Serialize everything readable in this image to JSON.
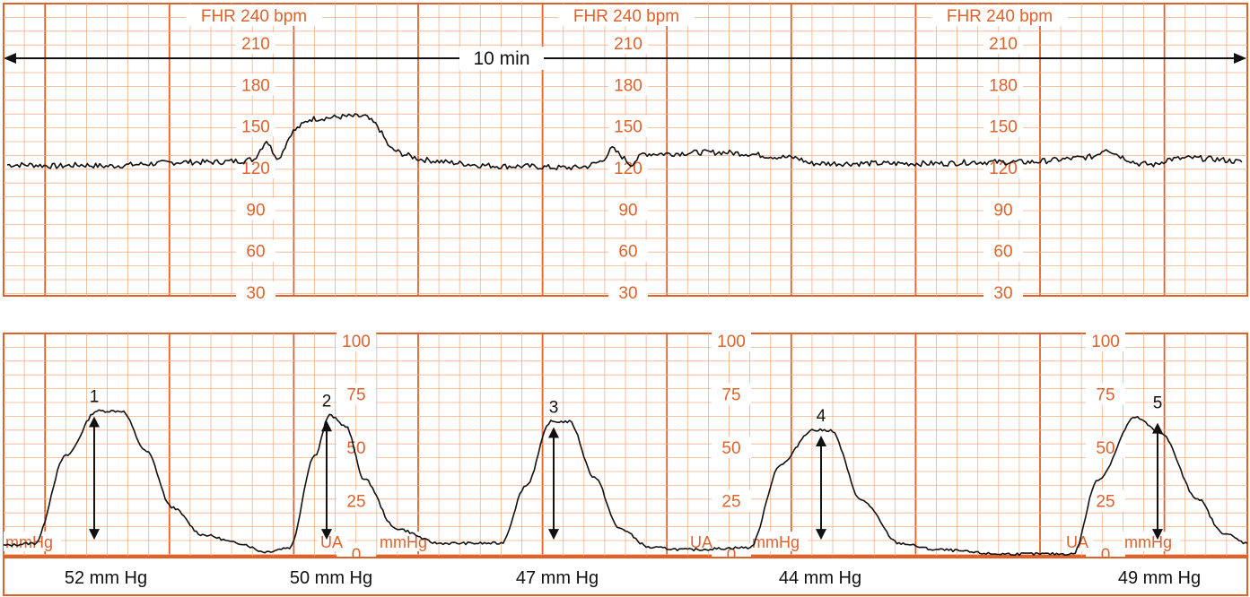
{
  "chart_data": [
    {
      "type": "line",
      "series": [
        {
          "values": [
            [
              0,
              122
            ],
            [
              0.2,
              122
            ],
            [
              0.4,
              121
            ],
            [
              0.6,
              122
            ],
            [
              0.8,
              121
            ],
            [
              1.0,
              122
            ],
            [
              1.2,
              123
            ],
            [
              1.4,
              124
            ],
            [
              1.5,
              124
            ],
            [
              1.7,
              124
            ],
            [
              1.9,
              125
            ],
            [
              2.0,
              126
            ],
            [
              2.1,
              140
            ],
            [
              2.15,
              132
            ],
            [
              2.2,
              126
            ],
            [
              2.3,
              145
            ],
            [
              2.45,
              155
            ],
            [
              2.6,
              156
            ],
            [
              2.75,
              157
            ],
            [
              2.9,
              157
            ],
            [
              3.0,
              150
            ],
            [
              3.1,
              134
            ],
            [
              3.2,
              130
            ],
            [
              3.35,
              126
            ],
            [
              3.55,
              124
            ],
            [
              3.8,
              122
            ],
            [
              4.0,
              121
            ],
            [
              4.2,
              121
            ],
            [
              4.45,
              120
            ],
            [
              4.6,
              120
            ],
            [
              4.7,
              121
            ],
            [
              4.82,
              125
            ],
            [
              4.9,
              134
            ],
            [
              4.98,
              128
            ],
            [
              5.05,
              122
            ],
            [
              5.15,
              130
            ],
            [
              5.35,
              130
            ],
            [
              5.6,
              131
            ],
            [
              5.8,
              131
            ],
            [
              6.0,
              130
            ],
            [
              6.2,
              128
            ],
            [
              6.4,
              127
            ],
            [
              6.5,
              123
            ],
            [
              6.7,
              123
            ],
            [
              7.0,
              123
            ],
            [
              7.3,
              123
            ],
            [
              7.6,
              123
            ],
            [
              7.8,
              124
            ],
            [
              8.0,
              124
            ],
            [
              8.3,
              124
            ],
            [
              8.55,
              126
            ],
            [
              8.8,
              128
            ],
            [
              8.9,
              134
            ],
            [
              9.0,
              129
            ],
            [
              9.15,
              123
            ],
            [
              9.3,
              122
            ],
            [
              9.4,
              126
            ],
            [
              9.6,
              127
            ],
            [
              9.8,
              126
            ],
            [
              10.0,
              124
            ]
          ]
        }
      ],
      "ylim": [
        30,
        240
      ],
      "xlim": [
        0,
        10
      ],
      "title": "FHR 240 bpm",
      "ylabel": "",
      "duration_label": "10 min",
      "y_ticks": [
        "210",
        "180",
        "150",
        "120",
        "90",
        "60",
        "30"
      ],
      "grid": true
    },
    {
      "type": "line",
      "series": [
        {
          "values": [
            [
              0,
              4
            ],
            [
              0.25,
              5
            ],
            [
              0.5,
              46
            ],
            [
              0.75,
              67
            ],
            [
              0.95,
              67
            ],
            [
              1.15,
              48
            ],
            [
              1.35,
              22
            ],
            [
              1.6,
              9
            ],
            [
              1.9,
              5
            ],
            [
              2.1,
              1
            ],
            [
              2.3,
              3
            ],
            [
              2.5,
              46
            ],
            [
              2.62,
              65
            ],
            [
              2.75,
              60
            ],
            [
              2.9,
              35
            ],
            [
              3.15,
              12
            ],
            [
              3.5,
              5
            ],
            [
              4.0,
              5
            ],
            [
              4.2,
              32
            ],
            [
              4.4,
              62
            ],
            [
              4.55,
              62
            ],
            [
              4.75,
              36
            ],
            [
              4.95,
              12
            ],
            [
              5.2,
              3
            ],
            [
              5.5,
              2
            ],
            [
              6.0,
              3
            ],
            [
              6.25,
              42
            ],
            [
              6.5,
              58
            ],
            [
              6.65,
              58
            ],
            [
              6.9,
              25
            ],
            [
              7.2,
              5
            ],
            [
              7.5,
              2
            ],
            [
              8.0,
              0
            ],
            [
              8.6,
              0
            ],
            [
              8.8,
              35
            ],
            [
              9.1,
              64
            ],
            [
              9.3,
              57
            ],
            [
              9.6,
              26
            ],
            [
              9.8,
              10
            ],
            [
              10.0,
              5
            ]
          ]
        }
      ],
      "ylim": [
        0,
        100
      ],
      "xlim": [
        0,
        10
      ],
      "y_ticks": [
        "100",
        "75",
        "50",
        "25",
        "0"
      ],
      "unit_labels": [
        "mmHg",
        "UA"
      ],
      "contraction_numbers": [
        "1",
        "2",
        "3",
        "4",
        "5"
      ],
      "contraction_peaks": [
        67,
        65,
        62,
        58,
        64
      ],
      "contraction_baselines": [
        5,
        5,
        5,
        5,
        5
      ],
      "measurements": [
        "52 mm Hg",
        "50 mm Hg",
        "47 mm Hg",
        "44 mm Hg",
        "49 mm Hg"
      ],
      "grid": true
    }
  ],
  "colors": {
    "grid_minor": "#f2b08a",
    "grid_major": "#e0622a",
    "trace": "#111111",
    "text_orange": "#e0622a"
  }
}
